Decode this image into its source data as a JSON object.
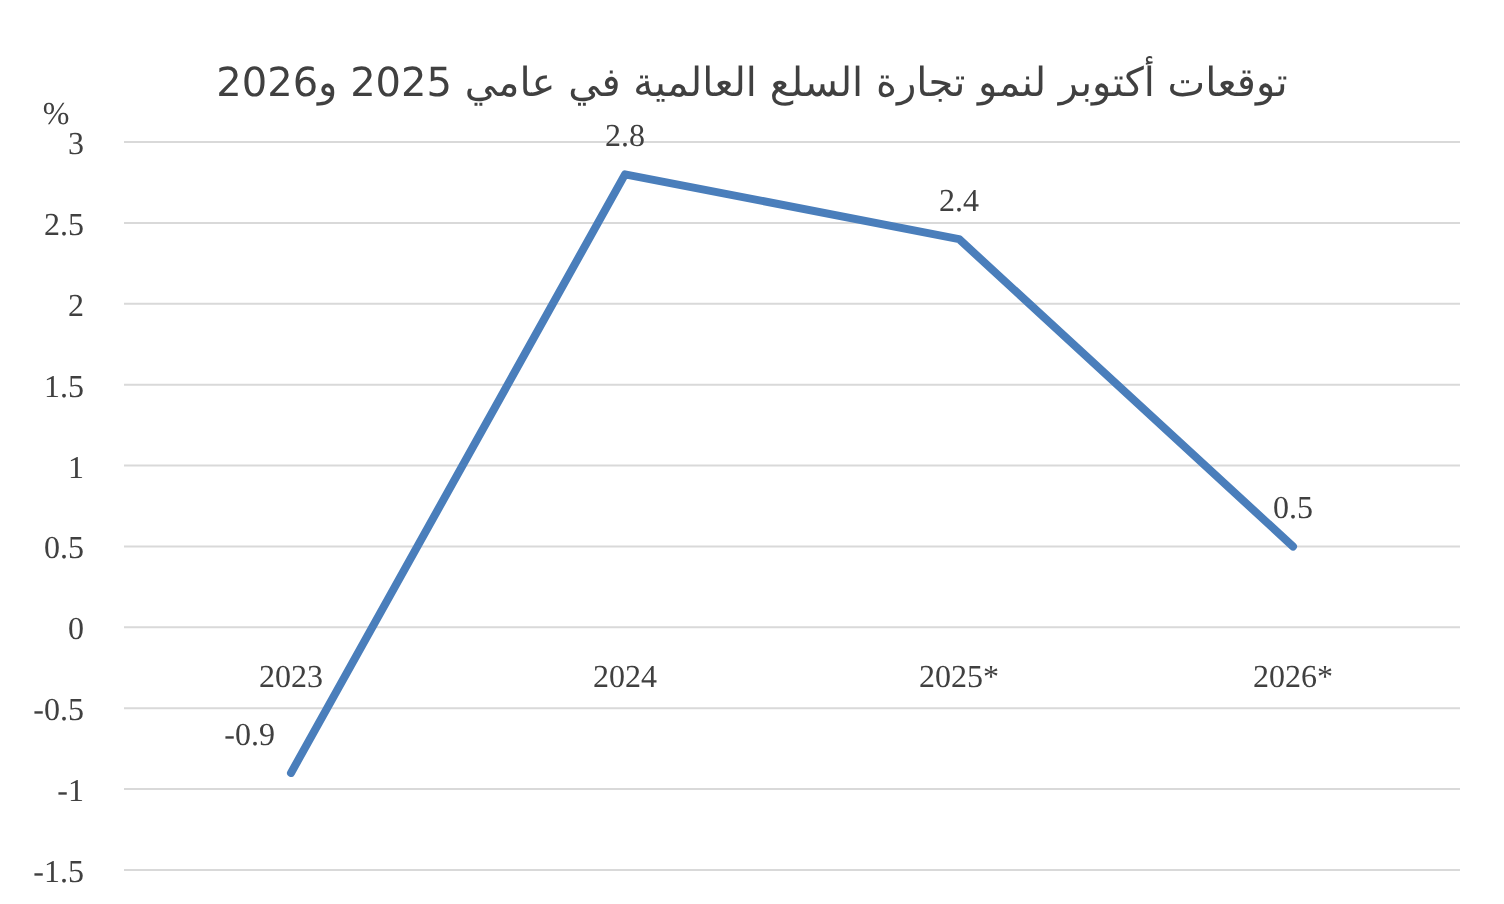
{
  "chart_data": {
    "type": "line",
    "title": "توقعات أكتوبر لنمو تجارة السلع العالمية في عامي 2025 و2026",
    "ylabel": "%",
    "categories": [
      "2023",
      "2024",
      "2025*",
      "2026*"
    ],
    "series": [
      {
        "color": "#4a7ebb",
        "values": [
          -0.9,
          2.8,
          2.4,
          0.5
        ]
      }
    ],
    "ylim": [
      -1.5,
      3
    ],
    "yticks": [
      -1.5,
      -1,
      -0.5,
      0,
      0.5,
      1,
      1.5,
      2,
      2.5,
      3
    ],
    "grid": "y",
    "data_labels": true,
    "marker": "none",
    "line_style": "solid"
  }
}
